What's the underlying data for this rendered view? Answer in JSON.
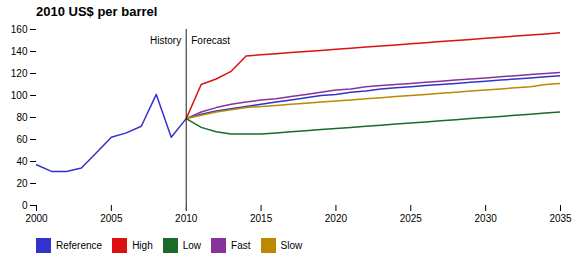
{
  "chart_data": {
    "type": "line",
    "title": "2010 US$ per barrel",
    "xlim": [
      2000,
      2035
    ],
    "xticks": [
      2000,
      2005,
      2010,
      2015,
      2020,
      2025,
      2030,
      2035
    ],
    "ylim": [
      0,
      160
    ],
    "yticks": [
      0,
      20,
      40,
      60,
      80,
      100,
      120,
      140,
      160
    ],
    "grid": false,
    "legend": "bottom",
    "series": [
      {
        "name": "Reference",
        "color": "#3333cc",
        "x": [
          2000,
          2001,
          2002,
          2003,
          2004,
          2005,
          2006,
          2007,
          2008,
          2009,
          2010
        ],
        "values": [
          37,
          31,
          31,
          34,
          48,
          62,
          66,
          72,
          101,
          62,
          79
        ]
      },
      {
        "name": "Reference",
        "color": "#3333cc",
        "x": [
          2010,
          2011,
          2012,
          2013,
          2014,
          2015,
          2016,
          2017,
          2018,
          2019,
          2020,
          2021,
          2022,
          2023,
          2024,
          2025,
          2026,
          2027,
          2028,
          2029,
          2030,
          2031,
          2032,
          2033,
          2034,
          2035
        ],
        "values": [
          79,
          83,
          86,
          88,
          90,
          92,
          94,
          96,
          98,
          100,
          101,
          103,
          104,
          106,
          107,
          108,
          109,
          110,
          111,
          112,
          113,
          114,
          115,
          116,
          117,
          118
        ]
      },
      {
        "name": "High",
        "color": "#dd1111",
        "x": [
          2010,
          2011,
          2012,
          2013,
          2014,
          2015,
          2016,
          2017,
          2018,
          2019,
          2020,
          2021,
          2022,
          2023,
          2024,
          2025,
          2026,
          2027,
          2028,
          2029,
          2030,
          2031,
          2032,
          2033,
          2034,
          2035
        ],
        "values": [
          79,
          110,
          115,
          122,
          136,
          137,
          138,
          139,
          140,
          141,
          142,
          143,
          144,
          145,
          146,
          147,
          148,
          149,
          150,
          151,
          152,
          153,
          154,
          155,
          156,
          157
        ]
      },
      {
        "name": "Low",
        "color": "#1a6b2a",
        "x": [
          2010,
          2011,
          2012,
          2013,
          2014,
          2015,
          2016,
          2017,
          2018,
          2019,
          2020,
          2021,
          2022,
          2023,
          2024,
          2025,
          2026,
          2027,
          2028,
          2029,
          2030,
          2031,
          2032,
          2033,
          2034,
          2035
        ],
        "values": [
          79,
          71,
          67,
          65,
          65,
          65,
          66,
          67,
          68,
          69,
          70,
          71,
          72,
          73,
          74,
          75,
          76,
          77,
          78,
          79,
          80,
          81,
          82,
          83,
          84,
          85
        ]
      },
      {
        "name": "Fast",
        "color": "#883399",
        "x": [
          2010,
          2011,
          2012,
          2013,
          2014,
          2015,
          2016,
          2017,
          2018,
          2019,
          2020,
          2021,
          2022,
          2023,
          2024,
          2025,
          2026,
          2027,
          2028,
          2029,
          2030,
          2031,
          2032,
          2033,
          2034,
          2035
        ],
        "values": [
          79,
          85,
          89,
          92,
          94,
          96,
          97,
          99,
          101,
          103,
          105,
          106,
          108,
          109,
          110,
          111,
          112,
          113,
          114,
          115,
          116,
          117,
          118,
          119,
          120,
          121
        ]
      },
      {
        "name": "Slow",
        "color": "#bb8800",
        "x": [
          2010,
          2011,
          2012,
          2013,
          2014,
          2015,
          2016,
          2017,
          2018,
          2019,
          2020,
          2021,
          2022,
          2023,
          2024,
          2025,
          2026,
          2027,
          2028,
          2029,
          2030,
          2031,
          2032,
          2033,
          2034,
          2035
        ],
        "values": [
          79,
          82,
          85,
          87,
          89,
          90,
          91,
          92,
          93,
          94,
          95,
          96,
          97,
          98,
          99,
          100,
          101,
          102,
          103,
          104,
          105,
          106,
          107,
          108,
          110,
          111
        ]
      }
    ],
    "annotations": [
      {
        "type": "vline",
        "x": 2010
      },
      {
        "text": "History",
        "x": 2010,
        "y": 153,
        "anchor": "end"
      },
      {
        "text": "Forecast",
        "x": 2010,
        "y": 153,
        "anchor": "start"
      }
    ]
  }
}
